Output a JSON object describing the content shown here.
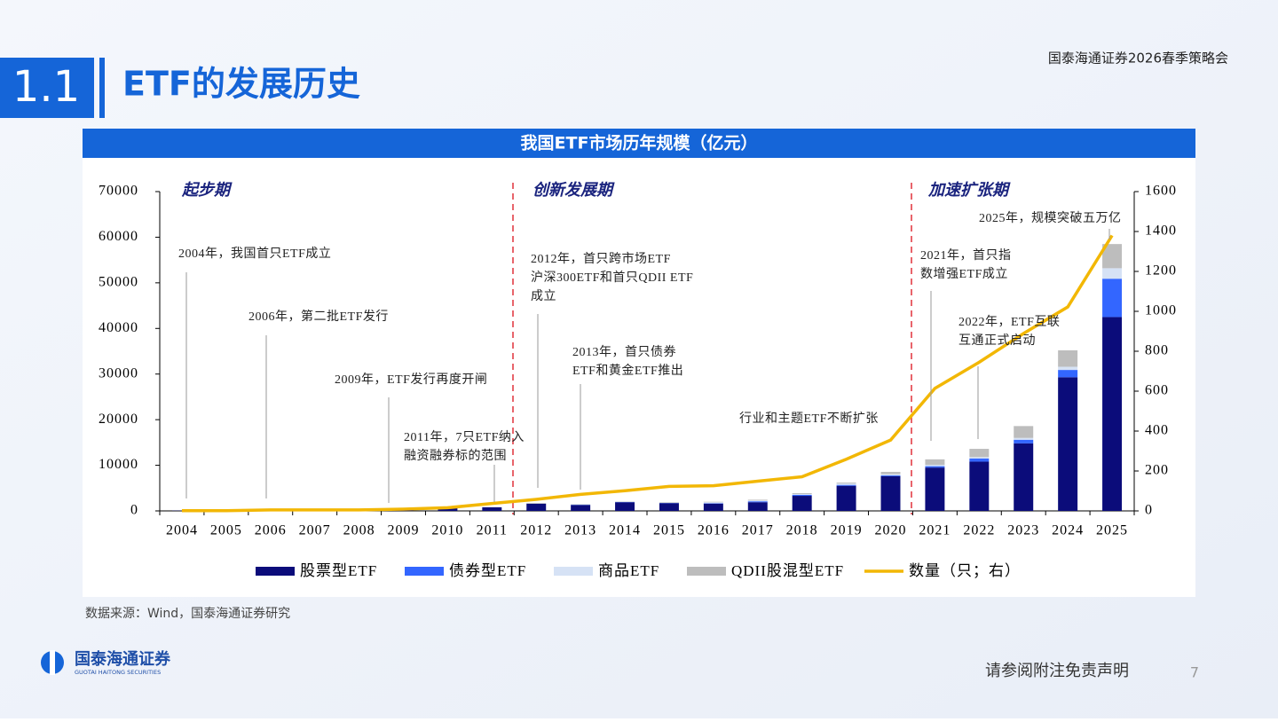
{
  "header": {
    "section": "1.1",
    "title": "ETF的发展历史",
    "event": "国泰海通证券2026春季策略会"
  },
  "chart_data": {
    "type": "bar",
    "stacked": true,
    "title": "我国ETF市场历年规模（亿元）",
    "categories": [
      "2004",
      "2005",
      "2006",
      "2007",
      "2008",
      "2009",
      "2010",
      "2011",
      "2012",
      "2013",
      "2014",
      "2015",
      "2016",
      "2017",
      "2018",
      "2019",
      "2020",
      "2021",
      "2022",
      "2023",
      "2024",
      "2025"
    ],
    "series": [
      {
        "name": "股票型ETF",
        "color": "#0b0c7a",
        "values": [
          50,
          60,
          100,
          300,
          200,
          400,
          600,
          800,
          1600,
          1300,
          1900,
          1700,
          1600,
          1900,
          3300,
          5500,
          7600,
          9500,
          10800,
          14800,
          29300,
          42500
        ]
      },
      {
        "name": "债券型ETF",
        "color": "#3366ff",
        "values": [
          0,
          0,
          0,
          0,
          0,
          0,
          0,
          0,
          0,
          50,
          50,
          50,
          100,
          200,
          200,
          200,
          200,
          300,
          700,
          800,
          1600,
          8400
        ]
      },
      {
        "name": "商品ETF",
        "color": "#d6e2f5",
        "values": [
          0,
          0,
          0,
          0,
          0,
          0,
          0,
          0,
          0,
          100,
          80,
          60,
          200,
          200,
          200,
          300,
          250,
          300,
          300,
          400,
          700,
          2300
        ]
      },
      {
        "name": "QDII股混型ETF",
        "color": "#bdbdbd",
        "values": [
          0,
          0,
          0,
          0,
          0,
          0,
          0,
          0,
          100,
          50,
          50,
          100,
          100,
          150,
          200,
          200,
          500,
          1200,
          1800,
          2600,
          3600,
          5300
        ]
      },
      {
        "name": "数量（只；右）",
        "color": "#f2b705",
        "type": "line",
        "axis": "y2",
        "values": [
          1,
          1,
          5,
          5,
          5,
          9,
          16,
          37,
          58,
          83,
          101,
          123,
          126,
          149,
          171,
          259,
          355,
          614,
          745,
          889,
          1022,
          1380
        ]
      }
    ],
    "ylim": [
      0,
      70000
    ],
    "yticks": [
      0,
      10000,
      20000,
      30000,
      40000,
      50000,
      60000,
      70000
    ],
    "y2lim": [
      0,
      1600
    ],
    "y2ticks": [
      0,
      200,
      400,
      600,
      800,
      1000,
      1200,
      1400,
      1600
    ],
    "periods": [
      "起步期",
      "创新发展期",
      "加速扩张期"
    ],
    "annotations": [
      [
        "2004年，我国首只ETF成立"
      ],
      [
        "2006年，第二批ETF发行"
      ],
      [
        "2009年，ETF发行再度开闸"
      ],
      [
        "2011年，7只ETF纳入",
        "融资融券标的范围"
      ],
      [
        "2012年，首只跨市场ETF",
        "沪深300ETF和首只QDII ETF",
        "成立"
      ],
      [
        "2013年，首只债券",
        "ETF和黄金ETF推出"
      ],
      [
        "行业和主题ETF不断扩张"
      ],
      [
        "2021年，首只指",
        "数增强ETF成立"
      ],
      [
        "2022年，ETF互联",
        "互通正式启动"
      ],
      [
        "2025年，规模突破五万亿"
      ]
    ]
  },
  "footer": {
    "source": "数据来源：Wind，国泰海通证券研究",
    "logo": "国泰海通证券",
    "logo_en": "GUOTAI HAITONG SECURITIES",
    "disclaimer": "请参阅附注免责声明",
    "page": "7"
  }
}
